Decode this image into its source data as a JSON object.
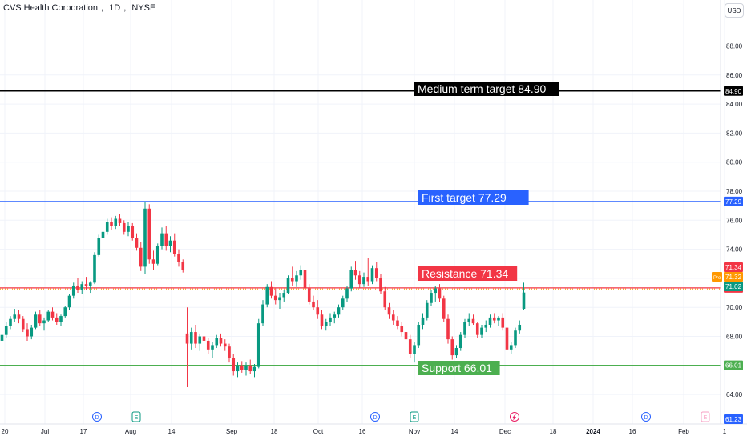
{
  "header": {
    "symbol": "CVS Health Corporation",
    "interval": "1D",
    "exchange": "NYSE",
    "currency": "USD"
  },
  "chart_data": {
    "type": "candlestick",
    "price_axis": {
      "ticks": [
        "88.00",
        "86.00",
        "84.00",
        "82.00",
        "80.00",
        "78.00",
        "76.00",
        "74.00",
        "72.00",
        "70.00",
        "68.00",
        "66.00",
        "64.00"
      ],
      "range": [
        62.0,
        89.5
      ]
    },
    "time_axis": {
      "ticks": [
        "20",
        "Jul",
        "17",
        "Aug",
        "14",
        "Sep",
        "18",
        "Oct",
        "16",
        "Nov",
        "14",
        "Dec",
        "18",
        "2024",
        "16",
        "Feb",
        "1"
      ]
    },
    "levels": [
      {
        "label": "Medium term target 84.90",
        "value": 84.9,
        "color": "#000000",
        "tag": "84.90"
      },
      {
        "label": "First target 77.29",
        "value": 77.29,
        "color": "#2962ff",
        "tag": "77.29"
      },
      {
        "label": "Resistance 71.34",
        "value": 71.34,
        "color": "#f23645",
        "tag": "71.34"
      },
      {
        "label": "Support 66.01",
        "value": 66.01,
        "color": "#4caf50",
        "tag": "66.01"
      }
    ],
    "price_tags": [
      {
        "text": "71.34",
        "value": 71.34,
        "color": "#f23645"
      },
      {
        "text": "71.32",
        "value": 71.32,
        "color": "#ff9800",
        "prefix": "Pre"
      },
      {
        "text": "71.02",
        "value": 71.02,
        "color": "#089981"
      },
      {
        "text": "61.23",
        "value": 61.23,
        "color": "#2962ff"
      }
    ],
    "event_markers": [
      {
        "kind": "D",
        "date": "Jul 10"
      },
      {
        "kind": "E",
        "date": "Aug 2"
      },
      {
        "kind": "D",
        "date": "Oct 19"
      },
      {
        "kind": "E",
        "date": "Nov 1"
      },
      {
        "kind": "split",
        "date": "Dec 5"
      },
      {
        "kind": "D",
        "date": "Jan 19"
      },
      {
        "kind": "E",
        "date": "Feb 7"
      }
    ],
    "colors": {
      "up": "#089981",
      "down": "#f23645"
    },
    "candles": [
      [
        67.7,
        68.3,
        67.2,
        68.1
      ],
      [
        68.1,
        69.0,
        67.9,
        68.7
      ],
      [
        68.7,
        69.4,
        68.5,
        69.2
      ],
      [
        69.2,
        69.9,
        69.0,
        69.5
      ],
      [
        69.5,
        69.8,
        68.9,
        69.2
      ],
      [
        69.2,
        69.4,
        68.3,
        68.5
      ],
      [
        68.5,
        68.9,
        67.7,
        68.0
      ],
      [
        68.0,
        68.8,
        67.8,
        68.6
      ],
      [
        68.6,
        69.7,
        68.5,
        69.5
      ],
      [
        69.5,
        69.8,
        68.7,
        68.9
      ],
      [
        68.9,
        69.3,
        68.4,
        69.1
      ],
      [
        69.1,
        69.8,
        69.0,
        69.7
      ],
      [
        69.7,
        70.0,
        69.1,
        69.3
      ],
      [
        69.3,
        69.6,
        68.8,
        69.0
      ],
      [
        69.0,
        69.5,
        68.7,
        69.4
      ],
      [
        69.4,
        70.1,
        69.3,
        70.0
      ],
      [
        70.0,
        70.9,
        69.8,
        70.8
      ],
      [
        70.8,
        71.7,
        70.6,
        71.5
      ],
      [
        71.5,
        72.0,
        71.0,
        71.2
      ],
      [
        71.2,
        71.8,
        70.9,
        71.6
      ],
      [
        71.6,
        72.1,
        71.2,
        71.5
      ],
      [
        71.5,
        71.8,
        71.0,
        71.7
      ],
      [
        71.7,
        73.8,
        71.6,
        73.6
      ],
      [
        73.6,
        75.0,
        73.5,
        74.8
      ],
      [
        74.8,
        75.4,
        74.5,
        75.2
      ],
      [
        75.2,
        76.1,
        75.0,
        75.9
      ],
      [
        75.9,
        76.2,
        75.3,
        75.6
      ],
      [
        75.6,
        76.3,
        75.4,
        76.1
      ],
      [
        76.1,
        76.4,
        75.6,
        75.8
      ],
      [
        75.8,
        76.0,
        75.0,
        75.2
      ],
      [
        75.2,
        75.9,
        74.9,
        75.6
      ],
      [
        75.6,
        75.8,
        74.6,
        74.8
      ],
      [
        74.8,
        75.1,
        73.9,
        74.1
      ],
      [
        74.1,
        74.5,
        72.5,
        72.8
      ],
      [
        72.8,
        77.29,
        72.3,
        76.8
      ],
      [
        76.8,
        77.1,
        73.0,
        73.3
      ],
      [
        73.3,
        73.9,
        72.6,
        73.0
      ],
      [
        73.0,
        74.4,
        72.9,
        74.2
      ],
      [
        74.2,
        75.5,
        74.0,
        75.1
      ],
      [
        75.1,
        75.6,
        73.9,
        74.2
      ],
      [
        74.2,
        74.9,
        73.8,
        74.6
      ],
      [
        74.6,
        75.1,
        73.5,
        73.7
      ],
      [
        73.7,
        74.0,
        72.8,
        73.1
      ],
      [
        73.1,
        73.3,
        72.4,
        72.6
      ],
      [
        68.2,
        70.0,
        64.5,
        67.5
      ],
      [
        67.5,
        68.6,
        67.1,
        68.3
      ],
      [
        68.3,
        68.8,
        67.2,
        67.5
      ],
      [
        67.5,
        68.2,
        67.0,
        68.0
      ],
      [
        68.0,
        68.5,
        67.5,
        67.7
      ],
      [
        67.7,
        67.9,
        66.8,
        67.1
      ],
      [
        67.1,
        67.6,
        66.5,
        67.4
      ],
      [
        67.4,
        68.1,
        67.2,
        67.9
      ],
      [
        67.9,
        68.2,
        67.3,
        67.5
      ],
      [
        67.5,
        67.8,
        67.0,
        67.3
      ],
      [
        67.3,
        67.5,
        66.2,
        66.5
      ],
      [
        66.5,
        66.8,
        65.3,
        65.6
      ],
      [
        65.6,
        66.2,
        65.2,
        66.0
      ],
      [
        66.0,
        66.3,
        65.5,
        65.7
      ],
      [
        65.7,
        66.2,
        65.3,
        66.0
      ],
      [
        66.0,
        66.4,
        65.4,
        65.6
      ],
      [
        65.6,
        66.1,
        65.2,
        65.9
      ],
      [
        65.9,
        69.2,
        65.8,
        68.9
      ],
      [
        68.9,
        70.5,
        68.7,
        70.2
      ],
      [
        70.2,
        71.6,
        70.0,
        71.4
      ],
      [
        71.4,
        71.8,
        70.6,
        70.8
      ],
      [
        70.8,
        71.3,
        70.2,
        70.5
      ],
      [
        70.5,
        71.0,
        69.9,
        70.7
      ],
      [
        70.7,
        71.2,
        70.4,
        71.0
      ],
      [
        71.0,
        72.2,
        70.9,
        72.0
      ],
      [
        72.0,
        72.8,
        71.5,
        71.8
      ],
      [
        71.8,
        72.5,
        71.4,
        72.2
      ],
      [
        72.2,
        72.9,
        71.9,
        72.6
      ],
      [
        72.6,
        73.0,
        71.1,
        71.3
      ],
      [
        71.3,
        71.6,
        70.2,
        70.4
      ],
      [
        70.4,
        70.8,
        69.8,
        70.0
      ],
      [
        70.0,
        70.5,
        69.2,
        69.5
      ],
      [
        69.5,
        69.8,
        68.5,
        68.7
      ],
      [
        68.7,
        69.2,
        68.4,
        69.0
      ],
      [
        69.0,
        69.6,
        68.7,
        69.3
      ],
      [
        69.3,
        69.7,
        68.9,
        69.5
      ],
      [
        69.5,
        70.2,
        69.3,
        70.0
      ],
      [
        70.0,
        70.8,
        69.8,
        70.6
      ],
      [
        70.6,
        71.5,
        70.4,
        71.3
      ],
      [
        71.3,
        72.8,
        71.1,
        72.6
      ],
      [
        72.6,
        73.2,
        71.9,
        72.2
      ],
      [
        72.2,
        72.5,
        71.3,
        71.6
      ],
      [
        71.6,
        72.4,
        71.4,
        72.1
      ],
      [
        72.1,
        73.4,
        71.5,
        71.8
      ],
      [
        71.8,
        72.9,
        71.6,
        72.7
      ],
      [
        72.7,
        73.1,
        71.8,
        72.0
      ],
      [
        72.0,
        72.3,
        70.9,
        71.1
      ],
      [
        71.1,
        71.4,
        69.8,
        70.0
      ],
      [
        70.0,
        70.3,
        69.2,
        69.5
      ],
      [
        69.5,
        69.8,
        68.8,
        69.1
      ],
      [
        69.1,
        69.4,
        68.5,
        68.7
      ],
      [
        68.7,
        69.0,
        68.0,
        68.3
      ],
      [
        68.3,
        68.6,
        67.5,
        67.8
      ],
      [
        67.8,
        68.1,
        66.5,
        66.8
      ],
      [
        66.8,
        67.6,
        66.2,
        67.4
      ],
      [
        67.4,
        69.0,
        67.2,
        68.8
      ],
      [
        68.8,
        69.6,
        68.5,
        69.3
      ],
      [
        69.3,
        70.5,
        69.1,
        70.3
      ],
      [
        70.3,
        71.2,
        70.1,
        71.0
      ],
      [
        71.0,
        71.5,
        70.4,
        71.3
      ],
      [
        71.3,
        71.6,
        70.4,
        70.6
      ],
      [
        70.6,
        70.8,
        69.0,
        69.2
      ],
      [
        69.2,
        69.5,
        67.5,
        67.8
      ],
      [
        67.8,
        68.0,
        66.4,
        66.7
      ],
      [
        66.7,
        67.4,
        66.5,
        67.2
      ],
      [
        67.2,
        68.3,
        67.0,
        68.1
      ],
      [
        68.1,
        69.2,
        67.9,
        69.0
      ],
      [
        69.0,
        69.6,
        68.7,
        69.2
      ],
      [
        69.2,
        69.5,
        68.8,
        68.9
      ],
      [
        68.9,
        69.0,
        67.9,
        68.1
      ],
      [
        68.1,
        68.8,
        67.9,
        68.6
      ],
      [
        68.6,
        69.1,
        68.3,
        68.8
      ],
      [
        68.8,
        69.5,
        68.6,
        69.3
      ],
      [
        69.3,
        69.6,
        68.9,
        69.1
      ],
      [
        69.1,
        69.4,
        68.7,
        69.3
      ],
      [
        69.3,
        69.6,
        68.4,
        68.6
      ],
      [
        68.6,
        68.8,
        66.9,
        67.1
      ],
      [
        67.1,
        67.6,
        66.8,
        67.4
      ],
      [
        67.4,
        68.6,
        67.2,
        68.4
      ],
      [
        68.4,
        69.1,
        68.2,
        68.8
      ],
      [
        69.9,
        71.7,
        69.8,
        71.02
      ]
    ]
  }
}
